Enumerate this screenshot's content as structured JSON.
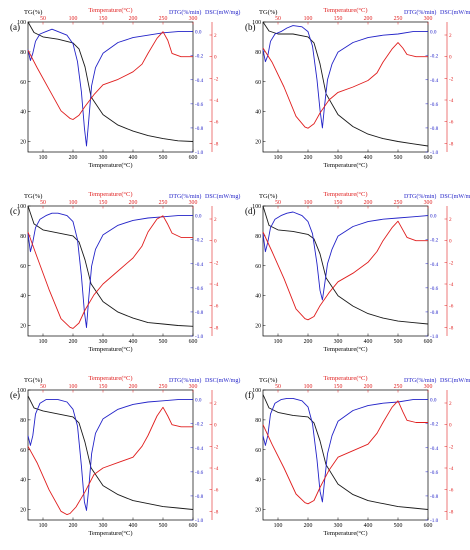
{
  "figure": {
    "colors": {
      "tg": "#1a1a1a",
      "dtg": "#2323c8",
      "dsc": "#e01e1e",
      "axis": "#000000"
    },
    "axes_text": {
      "tg_label": "TG(%)",
      "temp_top_label": "Temperature(°C)",
      "dtg_label": "DTG(%/min)",
      "dsc_label": "DSC(mW/mg)",
      "xlabel": "Temperature(°C)"
    },
    "ticks": {
      "bottom": [
        "100",
        "200",
        "300",
        "400",
        "500",
        "600"
      ],
      "top": [
        "50",
        "100",
        "150",
        "200",
        "250",
        "300"
      ],
      "tg": [
        "20",
        "40",
        "60",
        "80",
        "100"
      ],
      "dtg": [
        "-1.0",
        "-0.8",
        "-0.6",
        "-0.4",
        "-0.2",
        "0.0"
      ],
      "dsc": [
        "-8",
        "-6",
        "-4",
        "-2",
        "0",
        "2"
      ]
    }
  },
  "chart_data": [
    {
      "type": "line",
      "panel_label": "(a)",
      "xlabel": "Temperature(°C)",
      "x2label": "Temperature(°C)",
      "xlim": [
        50,
        600
      ],
      "x2lim": [
        25,
        300
      ],
      "ylim_tg": [
        13,
        100
      ],
      "ylim_dtg": [
        -1.0,
        0.08
      ],
      "ylim_dsc": [
        -8.8,
        3.2
      ],
      "series": [
        {
          "name": "TG(%)",
          "axis": "tg",
          "x": [
            50,
            70,
            100,
            150,
            200,
            220,
            240,
            260,
            300,
            350,
            400,
            450,
            500,
            550,
            600
          ],
          "values": [
            100,
            93,
            90,
            88.5,
            86,
            82,
            70,
            50,
            38,
            31,
            27,
            24,
            22,
            20.5,
            20
          ]
        },
        {
          "name": "DTG(%/min)",
          "axis": "dtg",
          "x": [
            50,
            58,
            66,
            75,
            90,
            110,
            130,
            150,
            180,
            200,
            215,
            228,
            238,
            245,
            252,
            262,
            275,
            300,
            350,
            400,
            450,
            500,
            550,
            600
          ],
          "values": [
            -0.15,
            -0.24,
            -0.18,
            -0.08,
            -0.02,
            0.0,
            0.02,
            0.0,
            -0.03,
            -0.1,
            -0.25,
            -0.5,
            -0.8,
            -0.95,
            -0.75,
            -0.45,
            -0.3,
            -0.18,
            -0.09,
            -0.05,
            -0.03,
            -0.01,
            0.0,
            0.0
          ]
        },
        {
          "name": "DSC(mW/mg)",
          "axis": "dsc",
          "x": [
            25,
            40,
            60,
            80,
            95,
            100,
            110,
            120,
            135,
            150,
            175,
            200,
            215,
            225,
            240,
            250,
            258,
            265,
            280,
            300
          ],
          "values": [
            0.6,
            -1.0,
            -3.0,
            -5.0,
            -5.7,
            -5.8,
            -5.4,
            -4.6,
            -3.5,
            -2.6,
            -2.1,
            -1.4,
            -0.7,
            0.3,
            1.7,
            2.3,
            1.5,
            0.3,
            0.0,
            0.0
          ]
        }
      ]
    },
    {
      "type": "line",
      "panel_label": "(b)",
      "xlabel": "Temperature(°C)",
      "x2label": "Temperature(°C)",
      "xlim": [
        50,
        600
      ],
      "x2lim": [
        25,
        300
      ],
      "ylim_tg": [
        13,
        100
      ],
      "ylim_dtg": [
        -1.0,
        0.08
      ],
      "ylim_dsc": [
        -8.8,
        3.2
      ],
      "series": [
        {
          "name": "TG(%)",
          "axis": "tg",
          "x": [
            50,
            70,
            100,
            150,
            200,
            220,
            240,
            260,
            300,
            350,
            400,
            450,
            500,
            550,
            600
          ],
          "values": [
            100,
            94,
            92,
            92,
            90,
            86,
            72,
            52,
            38,
            30,
            25,
            22,
            20,
            18.5,
            17
          ]
        },
        {
          "name": "DTG(%/min)",
          "axis": "dtg",
          "x": [
            50,
            58,
            66,
            75,
            90,
            110,
            130,
            150,
            180,
            200,
            215,
            230,
            240,
            248,
            255,
            265,
            280,
            300,
            350,
            400,
            450,
            500,
            550,
            600
          ],
          "values": [
            -0.15,
            -0.25,
            -0.2,
            -0.08,
            -0.02,
            0.0,
            0.03,
            0.05,
            0.04,
            0.0,
            -0.12,
            -0.4,
            -0.65,
            -0.8,
            -0.62,
            -0.4,
            -0.27,
            -0.17,
            -0.09,
            -0.05,
            -0.03,
            -0.02,
            0.0,
            0.0
          ]
        },
        {
          "name": "DSC(mW/mg)",
          "axis": "dsc",
          "x": [
            25,
            40,
            60,
            80,
            95,
            100,
            110,
            120,
            135,
            150,
            175,
            200,
            215,
            225,
            240,
            250,
            258,
            265,
            280,
            300
          ],
          "values": [
            0.8,
            -0.5,
            -2.8,
            -5.5,
            -6.5,
            -6.6,
            -6.2,
            -5.2,
            -4.0,
            -3.3,
            -2.8,
            -2.2,
            -1.5,
            -0.5,
            0.7,
            1.3,
            0.8,
            0.2,
            0.0,
            0.0
          ]
        }
      ]
    },
    {
      "type": "line",
      "panel_label": "(c)",
      "xlabel": "Temperature(°C)",
      "x2label": "Temperature(°C)",
      "xlim": [
        50,
        600
      ],
      "x2lim": [
        25,
        300
      ],
      "ylim_tg": [
        13,
        100
      ],
      "ylim_dtg": [
        -1.0,
        0.08
      ],
      "ylim_dsc": [
        -8.8,
        3.2
      ],
      "series": [
        {
          "name": "TG(%)",
          "axis": "tg",
          "x": [
            50,
            70,
            100,
            150,
            200,
            220,
            240,
            260,
            300,
            350,
            400,
            450,
            500,
            550,
            600
          ],
          "values": [
            100,
            88,
            84,
            82,
            80,
            76,
            64,
            48,
            36,
            29,
            25,
            22,
            21,
            20,
            19.5
          ]
        },
        {
          "name": "DTG(%/min)",
          "axis": "dtg",
          "x": [
            50,
            58,
            66,
            75,
            90,
            110,
            130,
            150,
            180,
            200,
            215,
            228,
            238,
            245,
            252,
            262,
            275,
            300,
            350,
            400,
            450,
            500,
            550,
            600
          ],
          "values": [
            -0.15,
            -0.3,
            -0.22,
            -0.1,
            -0.03,
            0.0,
            0.02,
            0.02,
            0.0,
            -0.05,
            -0.2,
            -0.5,
            -0.8,
            -0.93,
            -0.7,
            -0.42,
            -0.28,
            -0.16,
            -0.08,
            -0.04,
            -0.02,
            -0.01,
            0.0,
            0.0
          ]
        },
        {
          "name": "DSC(mW/mg)",
          "axis": "dsc",
          "x": [
            25,
            40,
            60,
            80,
            95,
            100,
            110,
            120,
            135,
            150,
            175,
            200,
            215,
            225,
            240,
            250,
            258,
            265,
            280,
            300
          ],
          "values": [
            0.8,
            -1.5,
            -4.5,
            -7.2,
            -8.0,
            -8.1,
            -7.6,
            -6.4,
            -5.0,
            -4.0,
            -2.8,
            -1.6,
            -0.5,
            0.8,
            2.0,
            2.3,
            1.5,
            0.7,
            0.3,
            0.3
          ]
        }
      ]
    },
    {
      "type": "line",
      "panel_label": "(d)",
      "xlabel": "Temperature(°C)",
      "x2label": "Temperature(°C)",
      "xlim": [
        50,
        600
      ],
      "x2lim": [
        25,
        300
      ],
      "ylim_tg": [
        13,
        100
      ],
      "ylim_dtg": [
        -1.0,
        0.08
      ],
      "ylim_dsc": [
        -8.8,
        3.2
      ],
      "series": [
        {
          "name": "TG(%)",
          "axis": "tg",
          "x": [
            50,
            70,
            100,
            150,
            200,
            220,
            240,
            260,
            300,
            350,
            400,
            450,
            500,
            550,
            600
          ],
          "values": [
            100,
            87,
            84,
            83,
            81,
            78,
            68,
            52,
            40,
            33,
            28,
            25,
            23,
            22,
            21
          ]
        },
        {
          "name": "DTG(%/min)",
          "axis": "dtg",
          "x": [
            50,
            58,
            66,
            75,
            90,
            110,
            130,
            150,
            180,
            200,
            215,
            230,
            240,
            248,
            255,
            265,
            280,
            300,
            350,
            400,
            450,
            500,
            550,
            600
          ],
          "values": [
            -0.15,
            -0.3,
            -0.22,
            -0.1,
            -0.03,
            0.0,
            0.02,
            0.03,
            0.0,
            -0.05,
            -0.15,
            -0.4,
            -0.62,
            -0.7,
            -0.58,
            -0.4,
            -0.28,
            -0.17,
            -0.09,
            -0.05,
            -0.03,
            -0.02,
            -0.01,
            0.0
          ]
        },
        {
          "name": "DSC(mW/mg)",
          "axis": "dsc",
          "x": [
            25,
            40,
            60,
            80,
            95,
            100,
            110,
            120,
            135,
            150,
            175,
            200,
            215,
            225,
            240,
            250,
            258,
            265,
            280,
            300
          ],
          "values": [
            0.8,
            -1.0,
            -3.5,
            -6.3,
            -7.2,
            -7.3,
            -7.0,
            -6.0,
            -4.8,
            -3.8,
            -3.0,
            -2.0,
            -1.0,
            0.0,
            1.2,
            1.8,
            1.0,
            0.3,
            0.0,
            0.0
          ]
        }
      ]
    },
    {
      "type": "line",
      "panel_label": "(e)",
      "xlabel": "Temperature(°C)",
      "x2label": "Temperature(°C)",
      "xlim": [
        50,
        600
      ],
      "x2lim": [
        25,
        300
      ],
      "ylim_tg": [
        13,
        100
      ],
      "ylim_dtg": [
        -1.0,
        0.08
      ],
      "ylim_dsc": [
        -8.8,
        3.2
      ],
      "series": [
        {
          "name": "TG(%)",
          "axis": "tg",
          "x": [
            50,
            70,
            100,
            150,
            200,
            220,
            240,
            260,
            300,
            350,
            400,
            450,
            500,
            550,
            600
          ],
          "values": [
            96,
            88,
            86,
            84,
            82,
            78,
            65,
            48,
            36,
            30,
            26,
            24,
            22,
            21,
            20
          ]
        },
        {
          "name": "DTG(%/min)",
          "axis": "dtg",
          "x": [
            50,
            58,
            66,
            75,
            90,
            110,
            130,
            150,
            180,
            200,
            215,
            228,
            238,
            245,
            252,
            262,
            275,
            300,
            350,
            400,
            450,
            500,
            550,
            600
          ],
          "values": [
            -0.3,
            -0.38,
            -0.3,
            -0.12,
            -0.03,
            0.0,
            0.0,
            0.0,
            -0.02,
            -0.08,
            -0.22,
            -0.55,
            -0.85,
            -0.92,
            -0.75,
            -0.45,
            -0.28,
            -0.16,
            -0.08,
            -0.04,
            -0.02,
            -0.01,
            0.0,
            0.0
          ]
        },
        {
          "name": "DSC(mW/mg)",
          "axis": "dsc",
          "x": [
            25,
            40,
            60,
            80,
            90,
            95,
            105,
            120,
            135,
            150,
            175,
            200,
            215,
            225,
            240,
            250,
            258,
            265,
            280,
            300
          ],
          "values": [
            -2.0,
            -3.5,
            -6.0,
            -8.0,
            -8.3,
            -8.2,
            -7.6,
            -6.2,
            -4.6,
            -4.0,
            -3.5,
            -3.0,
            -2.0,
            -1.0,
            0.8,
            1.6,
            0.8,
            0.0,
            -0.2,
            -0.2
          ]
        }
      ]
    },
    {
      "type": "line",
      "panel_label": "(f)",
      "xlabel": "Temperature(°C)",
      "x2label": "Temperature(°C)",
      "xlim": [
        50,
        600
      ],
      "x2lim": [
        25,
        300
      ],
      "ylim_tg": [
        13,
        100
      ],
      "ylim_dtg": [
        -1.0,
        0.08
      ],
      "ylim_dsc": [
        -8.8,
        3.2
      ],
      "series": [
        {
          "name": "TG(%)",
          "axis": "tg",
          "x": [
            50,
            70,
            100,
            150,
            200,
            220,
            240,
            260,
            300,
            350,
            400,
            450,
            500,
            550,
            600
          ],
          "values": [
            97,
            88,
            85,
            83,
            82,
            78,
            66,
            50,
            37,
            30,
            26,
            24,
            22,
            21,
            20
          ]
        },
        {
          "name": "DTG(%/min)",
          "axis": "dtg",
          "x": [
            50,
            58,
            66,
            75,
            90,
            110,
            130,
            150,
            180,
            200,
            215,
            230,
            240,
            248,
            255,
            265,
            280,
            300,
            350,
            400,
            450,
            500,
            550,
            600
          ],
          "values": [
            -0.3,
            -0.38,
            -0.3,
            -0.12,
            -0.03,
            0.0,
            0.01,
            0.01,
            -0.01,
            -0.06,
            -0.2,
            -0.5,
            -0.76,
            -0.85,
            -0.68,
            -0.45,
            -0.3,
            -0.18,
            -0.09,
            -0.05,
            -0.03,
            -0.02,
            0.0,
            0.0
          ]
        },
        {
          "name": "DSC(mW/mg)",
          "axis": "dsc",
          "x": [
            25,
            40,
            60,
            80,
            95,
            100,
            110,
            120,
            135,
            150,
            175,
            200,
            215,
            225,
            240,
            250,
            258,
            265,
            280,
            300
          ],
          "values": [
            0.0,
            -1.8,
            -4.0,
            -6.4,
            -7.2,
            -7.3,
            -7.0,
            -5.8,
            -4.2,
            -3.0,
            -2.4,
            -1.8,
            -0.8,
            0.2,
            1.6,
            2.2,
            1.2,
            0.4,
            0.2,
            0.2
          ]
        }
      ]
    }
  ]
}
